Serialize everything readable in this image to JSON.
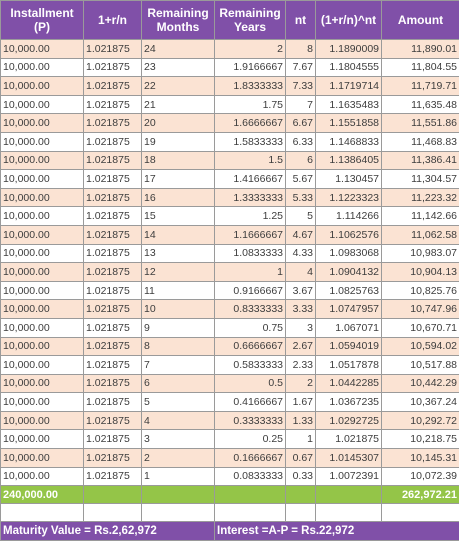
{
  "headers": {
    "installment": "Installment (P)",
    "rate": "1+r/n",
    "months": "Remaining Months",
    "years": "Remaining Years",
    "nt": "nt",
    "factor": "(1+r/n)^nt",
    "amount": "Amount"
  },
  "rows": [
    {
      "p": "10,000.00",
      "rate": "1.021875",
      "months": "24",
      "years": "2",
      "nt": "8",
      "factor": "1.1890009",
      "amount": "11,890.01"
    },
    {
      "p": "10,000.00",
      "rate": "1.021875",
      "months": "23",
      "years": "1.9166667",
      "nt": "7.67",
      "factor": "1.1804555",
      "amount": "11,804.55"
    },
    {
      "p": "10,000.00",
      "rate": "1.021875",
      "months": "22",
      "years": "1.8333333",
      "nt": "7.33",
      "factor": "1.1719714",
      "amount": "11,719.71"
    },
    {
      "p": "10,000.00",
      "rate": "1.021875",
      "months": "21",
      "years": "1.75",
      "nt": "7",
      "factor": "1.1635483",
      "amount": "11,635.48"
    },
    {
      "p": "10,000.00",
      "rate": "1.021875",
      "months": "20",
      "years": "1.6666667",
      "nt": "6.67",
      "factor": "1.1551858",
      "amount": "11,551.86"
    },
    {
      "p": "10,000.00",
      "rate": "1.021875",
      "months": "19",
      "years": "1.5833333",
      "nt": "6.33",
      "factor": "1.1468833",
      "amount": "11,468.83"
    },
    {
      "p": "10,000.00",
      "rate": "1.021875",
      "months": "18",
      "years": "1.5",
      "nt": "6",
      "factor": "1.1386405",
      "amount": "11,386.41"
    },
    {
      "p": "10,000.00",
      "rate": "1.021875",
      "months": "17",
      "years": "1.4166667",
      "nt": "5.67",
      "factor": "1.130457",
      "amount": "11,304.57"
    },
    {
      "p": "10,000.00",
      "rate": "1.021875",
      "months": "16",
      "years": "1.3333333",
      "nt": "5.33",
      "factor": "1.1223323",
      "amount": "11,223.32"
    },
    {
      "p": "10,000.00",
      "rate": "1.021875",
      "months": "15",
      "years": "1.25",
      "nt": "5",
      "factor": "1.114266",
      "amount": "11,142.66"
    },
    {
      "p": "10,000.00",
      "rate": "1.021875",
      "months": "14",
      "years": "1.1666667",
      "nt": "4.67",
      "factor": "1.1062576",
      "amount": "11,062.58"
    },
    {
      "p": "10,000.00",
      "rate": "1.021875",
      "months": "13",
      "years": "1.0833333",
      "nt": "4.33",
      "factor": "1.0983068",
      "amount": "10,983.07"
    },
    {
      "p": "10,000.00",
      "rate": "1.021875",
      "months": "12",
      "years": "1",
      "nt": "4",
      "factor": "1.0904132",
      "amount": "10,904.13"
    },
    {
      "p": "10,000.00",
      "rate": "1.021875",
      "months": "11",
      "years": "0.9166667",
      "nt": "3.67",
      "factor": "1.0825763",
      "amount": "10,825.76"
    },
    {
      "p": "10,000.00",
      "rate": "1.021875",
      "months": "10",
      "years": "0.8333333",
      "nt": "3.33",
      "factor": "1.0747957",
      "amount": "10,747.96"
    },
    {
      "p": "10,000.00",
      "rate": "1.021875",
      "months": "9",
      "years": "0.75",
      "nt": "3",
      "factor": "1.067071",
      "amount": "10,670.71"
    },
    {
      "p": "10,000.00",
      "rate": "1.021875",
      "months": "8",
      "years": "0.6666667",
      "nt": "2.67",
      "factor": "1.0594019",
      "amount": "10,594.02"
    },
    {
      "p": "10,000.00",
      "rate": "1.021875",
      "months": "7",
      "years": "0.5833333",
      "nt": "2.33",
      "factor": "1.0517878",
      "amount": "10,517.88"
    },
    {
      "p": "10,000.00",
      "rate": "1.021875",
      "months": "6",
      "years": "0.5",
      "nt": "2",
      "factor": "1.0442285",
      "amount": "10,442.29"
    },
    {
      "p": "10,000.00",
      "rate": "1.021875",
      "months": "5",
      "years": "0.4166667",
      "nt": "1.67",
      "factor": "1.0367235",
      "amount": "10,367.24"
    },
    {
      "p": "10,000.00",
      "rate": "1.021875",
      "months": "4",
      "years": "0.3333333",
      "nt": "1.33",
      "factor": "1.0292725",
      "amount": "10,292.72"
    },
    {
      "p": "10,000.00",
      "rate": "1.021875",
      "months": "3",
      "years": "0.25",
      "nt": "1",
      "factor": "1.021875",
      "amount": "10,218.75"
    },
    {
      "p": "10,000.00",
      "rate": "1.021875",
      "months": "2",
      "years": "0.1666667",
      "nt": "0.67",
      "factor": "1.0145307",
      "amount": "10,145.31"
    },
    {
      "p": "10,000.00",
      "rate": "1.021875",
      "months": "1",
      "years": "0.0833333",
      "nt": "0.33",
      "factor": "1.0072391",
      "amount": "10,072.39"
    }
  ],
  "totals": {
    "installment": "240,000.00",
    "amount": "262,972.21"
  },
  "footer": {
    "maturity": "Maturity Value = Rs.2,62,972",
    "interest": "Interest =A-P = Rs.22,972"
  },
  "colors": {
    "header_bg": "#8050a8",
    "odd_row_bg": "#fbe3d3",
    "total_bg": "#94c548"
  }
}
